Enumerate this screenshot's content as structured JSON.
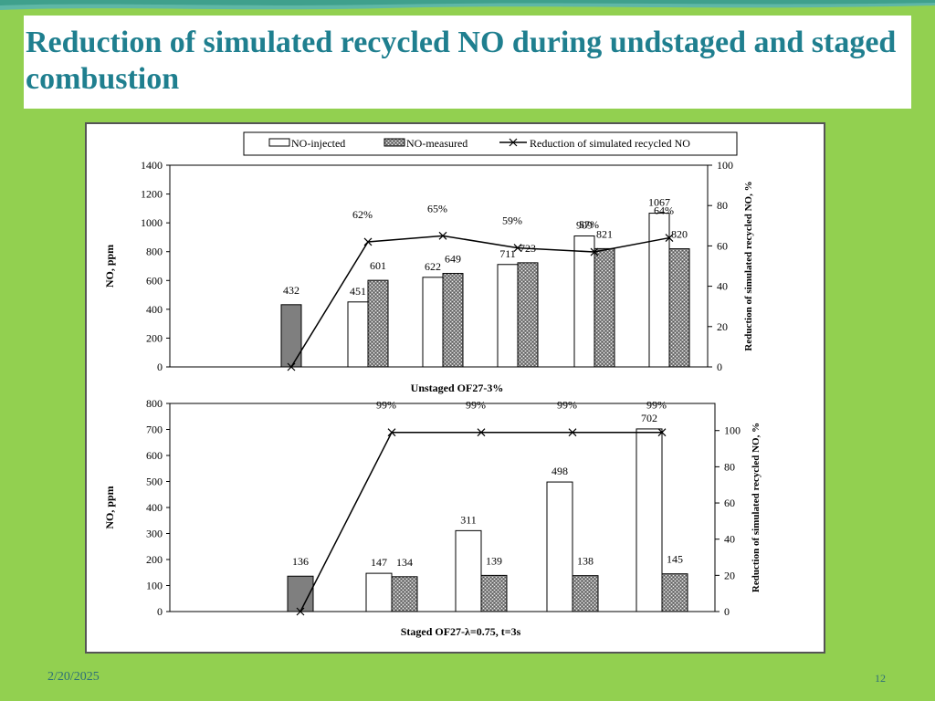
{
  "slide": {
    "title": "Reduction of simulated recycled NO during undstaged and staged combustion",
    "date": "2/20/2025",
    "page_number": "12"
  },
  "legend": {
    "injected": "NO-injected",
    "measured": "NO-measured",
    "reduction": "Reduction of simulated recycled NO"
  },
  "chart_data": [
    {
      "type": "bar",
      "xlabel": "Unstaged OF27-3%",
      "ylabel": "NO, ppm",
      "y2label": "Reduction of  simulated recycled NO, %",
      "ylim": [
        0,
        1400
      ],
      "yticks": [
        0,
        200,
        400,
        600,
        800,
        1000,
        1200,
        1400
      ],
      "y2lim": [
        0,
        100
      ],
      "y2ticks": [
        0,
        20,
        40,
        60,
        80,
        100
      ],
      "groups": 6,
      "series": [
        {
          "name": "NO-injected",
          "values": [
            null,
            451,
            622,
            711,
            909,
            1067
          ],
          "labels": [
            "",
            "451",
            "622",
            "711",
            "909",
            "1067"
          ]
        },
        {
          "name": "NO-measured",
          "values": [
            432,
            601,
            649,
            723,
            821,
            820
          ],
          "labels": [
            "432",
            "601",
            "649",
            "723",
            "821",
            "820"
          ]
        },
        {
          "name": "Reduction of simulated recycled NO",
          "values": [
            0,
            62,
            65,
            59,
            57,
            64
          ],
          "labels": [
            "",
            "62%",
            "65%",
            "59%",
            "57%",
            "64%"
          ]
        }
      ]
    },
    {
      "type": "bar",
      "xlabel": "Staged OF27-λ=0.75, t=3s",
      "ylabel": "NO, ppm",
      "y2label": "Reduction of  simulated recycled NO, %",
      "ylim": [
        0,
        800
      ],
      "yticks": [
        0,
        100,
        200,
        300,
        400,
        500,
        600,
        700,
        800
      ],
      "y2lim": [
        0,
        115
      ],
      "y2ticks": [
        0,
        20,
        40,
        60,
        80,
        100
      ],
      "groups": 5,
      "series": [
        {
          "name": "NO-injected",
          "values": [
            null,
            147,
            311,
            498,
            702
          ],
          "labels": [
            "",
            "147",
            "311",
            "498",
            "702"
          ]
        },
        {
          "name": "NO-measured",
          "values": [
            136,
            134,
            139,
            138,
            145
          ],
          "labels": [
            "136",
            "134",
            "139",
            "138",
            "145"
          ]
        },
        {
          "name": "Reduction of simulated recycled NO",
          "values": [
            0,
            99,
            99,
            99,
            99
          ],
          "labels": [
            "",
            "99%",
            "99%",
            "99%",
            "99%"
          ]
        }
      ]
    }
  ]
}
